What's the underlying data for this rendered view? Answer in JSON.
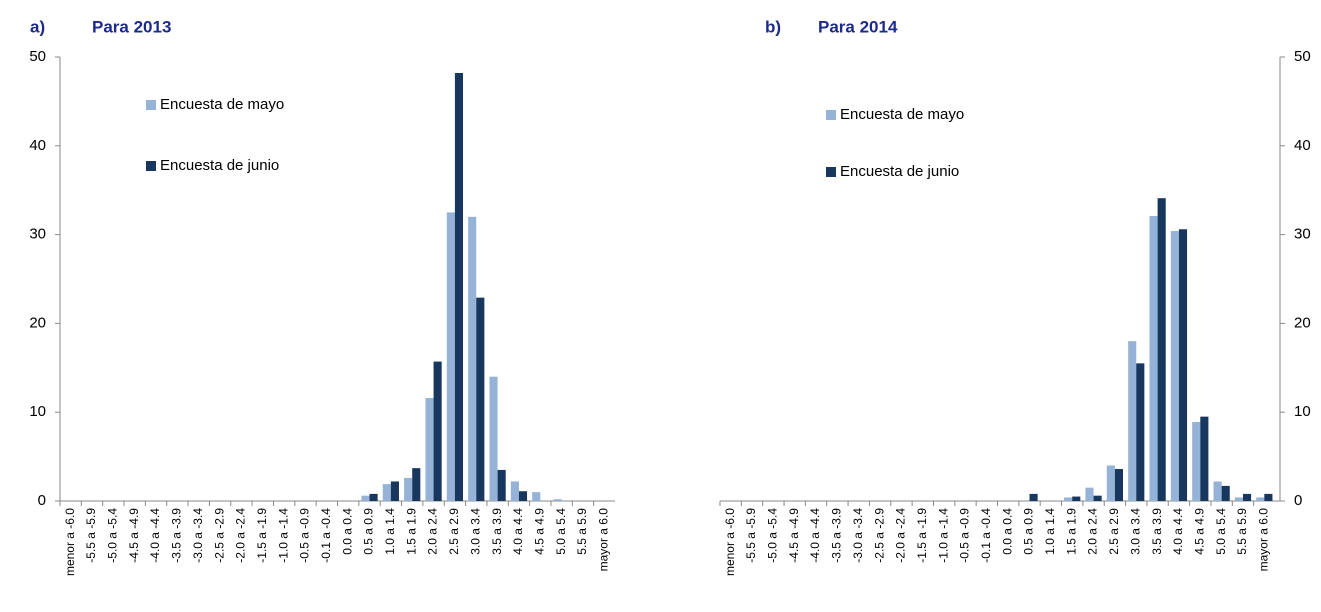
{
  "chart_data": [
    {
      "type": "bar",
      "label": "a)",
      "title": "Para 2013",
      "categories": [
        "menor a -6.0",
        "-5.5 a -5.9",
        "-5.0 a -5.4",
        "-4.5 a -4.9",
        "-4.0 a -4.4",
        "-3.5 a -3.9",
        "-3.0 a -3.4",
        "-2.5 a -2.9",
        "-2.0 a -2.4",
        "-1.5 a -1.9",
        "-1.0 a -1.4",
        "-0.5 a -0.9",
        "-0.1 a -0.4",
        "0.0 a 0.4",
        "0.5 a 0.9",
        "1.0 a 1.4",
        "1.5 a 1.9",
        "2.0 a 2.4",
        "2.5 a 2.9",
        "3.0 a 3.4",
        "3.5 a 3.9",
        "4.0 a 4.4",
        "4.5 a 4.9",
        "5.0 a 5.4",
        "5.5 a 5.9",
        "mayor a 6.0"
      ],
      "series": [
        {
          "name": "Encuesta de mayo",
          "color": "#95b3d7",
          "values": [
            0,
            0,
            0,
            0,
            0,
            0,
            0,
            0,
            0,
            0,
            0,
            0,
            0,
            0,
            0.6,
            1.9,
            2.6,
            11.6,
            32.5,
            32.0,
            14.0,
            2.2,
            1.0,
            0.2,
            0,
            0
          ]
        },
        {
          "name": "Encuesta de junio",
          "color": "#17375e",
          "values": [
            0,
            0,
            0,
            0,
            0,
            0,
            0,
            0,
            0,
            0,
            0,
            0,
            0,
            0,
            0.8,
            2.2,
            3.7,
            15.7,
            48.2,
            22.9,
            3.5,
            1.1,
            0,
            0,
            0,
            0
          ]
        }
      ],
      "ylim": [
        0,
        50
      ],
      "yticks": [
        0,
        10,
        20,
        30,
        40,
        50
      ],
      "y_axis_side": "left"
    },
    {
      "type": "bar",
      "label": "b)",
      "title": "Para 2014",
      "categories": [
        "menor a -6.0",
        "-5.5 a -5.9",
        "-5.0 a -5.4",
        "-4.5 a -4.9",
        "-4.0 a -4.4",
        "-3.5 a -3.9",
        "-3.0 a -3.4",
        "-2.5 a -2.9",
        "-2.0 a -2.4",
        "-1.5 a -1.9",
        "-1.0 a -1.4",
        "-0.5 a -0.9",
        "-0.1 a -0.4",
        "0.0 a 0.4",
        "0.5 a 0.9",
        "1.0 a 1.4",
        "1.5 a 1.9",
        "2.0 a 2.4",
        "2.5 a 2.9",
        "3.0 a 3.4",
        "3.5 a 3.9",
        "4.0 a 4.4",
        "4.5 a 4.9",
        "5.0 a 5.4",
        "5.5 a 5.9",
        "mayor a 6.0"
      ],
      "series": [
        {
          "name": "Encuesta de mayo",
          "color": "#95b3d7",
          "values": [
            0,
            0,
            0,
            0,
            0,
            0,
            0,
            0,
            0,
            0,
            0,
            0,
            0,
            0,
            0,
            0,
            0.4,
            1.5,
            4.0,
            18.0,
            32.1,
            30.4,
            8.9,
            2.2,
            0.4,
            0.4
          ]
        },
        {
          "name": "Encuesta de junio",
          "color": "#17375e",
          "values": [
            0,
            0,
            0,
            0,
            0,
            0,
            0,
            0,
            0,
            0,
            0,
            0,
            0,
            0,
            0.8,
            0,
            0.5,
            0.6,
            3.6,
            15.5,
            34.1,
            30.6,
            9.5,
            1.7,
            0.8,
            0.8
          ]
        }
      ],
      "ylim": [
        0,
        50
      ],
      "yticks": [
        0,
        10,
        20,
        30,
        40,
        50
      ],
      "y_axis_side": "right"
    }
  ]
}
